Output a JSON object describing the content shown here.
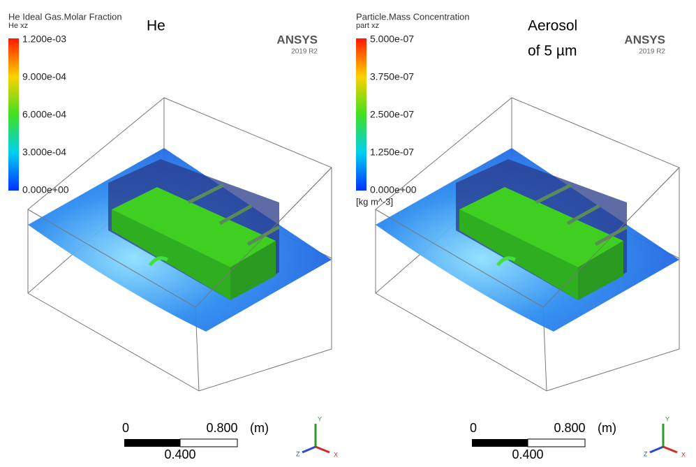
{
  "panels": [
    {
      "title": "He Ideal Gas.Molar Fraction",
      "subtitle": "He xz",
      "legend_labels": [
        "1.200e-03",
        "9.000e-04",
        "6.000e-04",
        "3.000e-04",
        "0.000e+00"
      ],
      "annotation": [
        "He"
      ],
      "logo": "ANSYS",
      "version": "2019 R2",
      "scale": {
        "start": "0",
        "end": "0.800",
        "unit": "(m)",
        "middle": "0.400"
      },
      "axes": {
        "y": "Y",
        "z": "Z",
        "x": "X"
      }
    },
    {
      "title": "Particle.Mass Concentration",
      "subtitle": "part xz",
      "legend_labels": [
        "5.000e-07",
        "3.750e-07",
        "2.500e-07",
        "1.250e-07",
        "0.000e+00"
      ],
      "unit_label": "[kg m^-3]",
      "annotation": [
        "Aerosol",
        "of 5 µm"
      ],
      "logo": "ANSYS",
      "version": "2019 R2",
      "scale": {
        "start": "0",
        "end": "0.800",
        "unit": "(m)",
        "middle": "0.400"
      },
      "axes": {
        "y": "Y",
        "z": "Z",
        "x": "X"
      }
    }
  ]
}
